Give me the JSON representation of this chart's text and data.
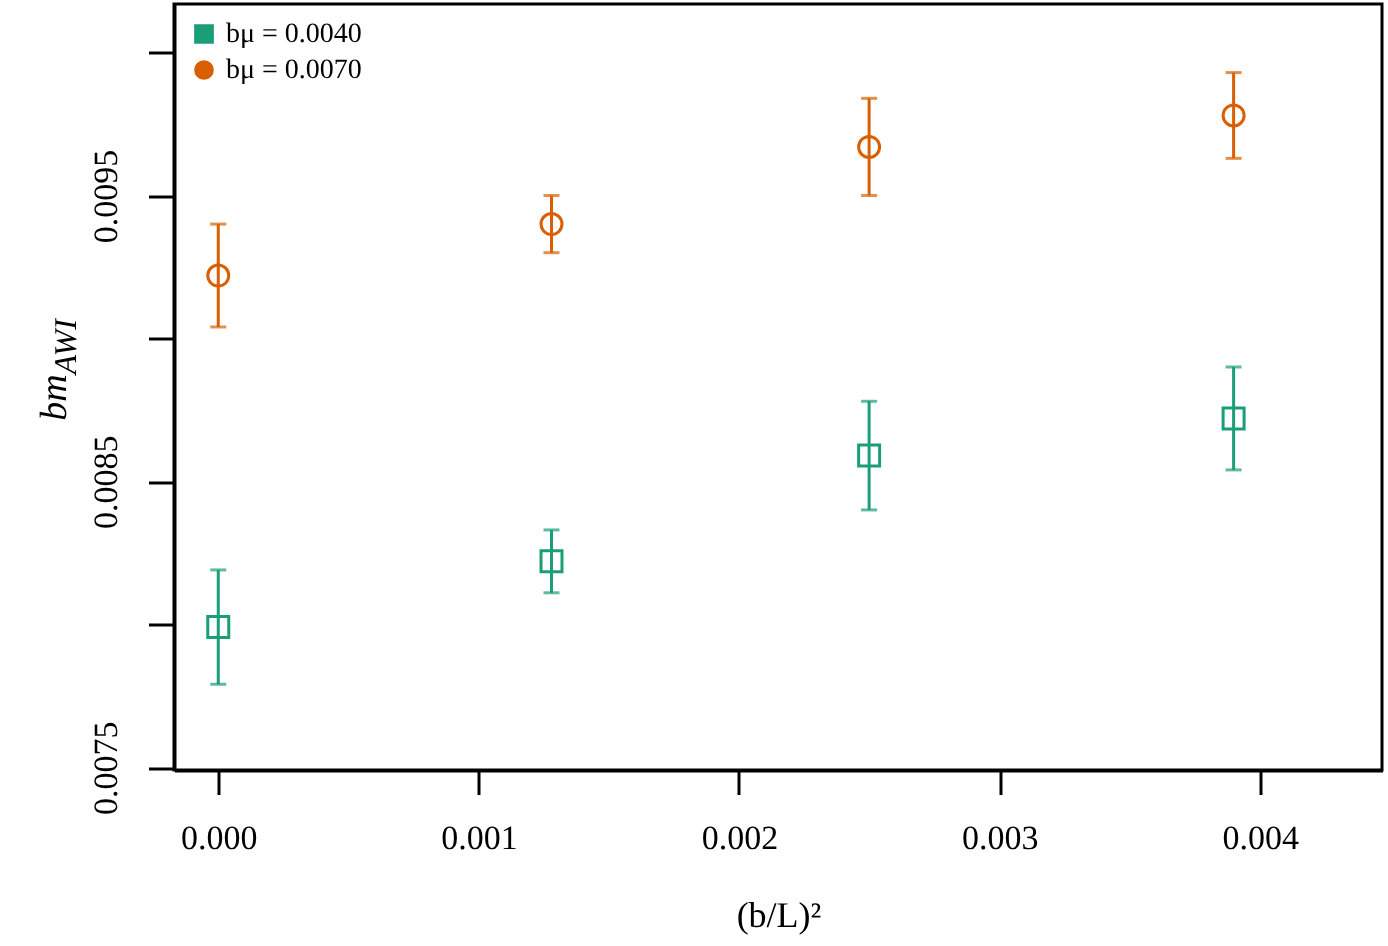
{
  "chart_data": {
    "type": "scatter",
    "xlabel": "(b/L)²",
    "ylabel": "bm$_{AWI}$",
    "x": [
      0,
      0.00128,
      0.0025,
      0.0039
    ],
    "series": [
      {
        "name": "bμ = 0.0040",
        "color": "#1b9e77",
        "marker": "square",
        "values": [
          0.00799,
          0.00822,
          0.00859,
          0.00872
        ],
        "errors": [
          0.0002,
          0.00011,
          0.00019,
          0.00018
        ]
      },
      {
        "name": "bμ = 0.0070",
        "color": "#d95f02",
        "marker": "circle",
        "values": [
          0.00922,
          0.0094,
          0.00967,
          0.00978
        ],
        "errors": [
          0.00018,
          0.0001,
          0.00017,
          0.00015
        ]
      }
    ],
    "xlim": [
      -0.00017,
      0.00447
    ],
    "ylim": [
      0.00749,
      0.01017
    ],
    "xticks": [
      {
        "value": 0,
        "label": "0.000"
      },
      {
        "value": 0.001,
        "label": "0.001"
      },
      {
        "value": 0.002,
        "label": "0.002"
      },
      {
        "value": 0.003,
        "label": "0.003"
      },
      {
        "value": 0.004,
        "label": "0.004"
      }
    ],
    "yticks": [
      0.0075,
      {
        "value": 0.008,
        "label": null
      },
      0.0085,
      {
        "value": 0.009,
        "label": null
      },
      0.0095,
      {
        "value": 0.01,
        "label": null
      }
    ],
    "legend": "top left",
    "grid": false
  }
}
